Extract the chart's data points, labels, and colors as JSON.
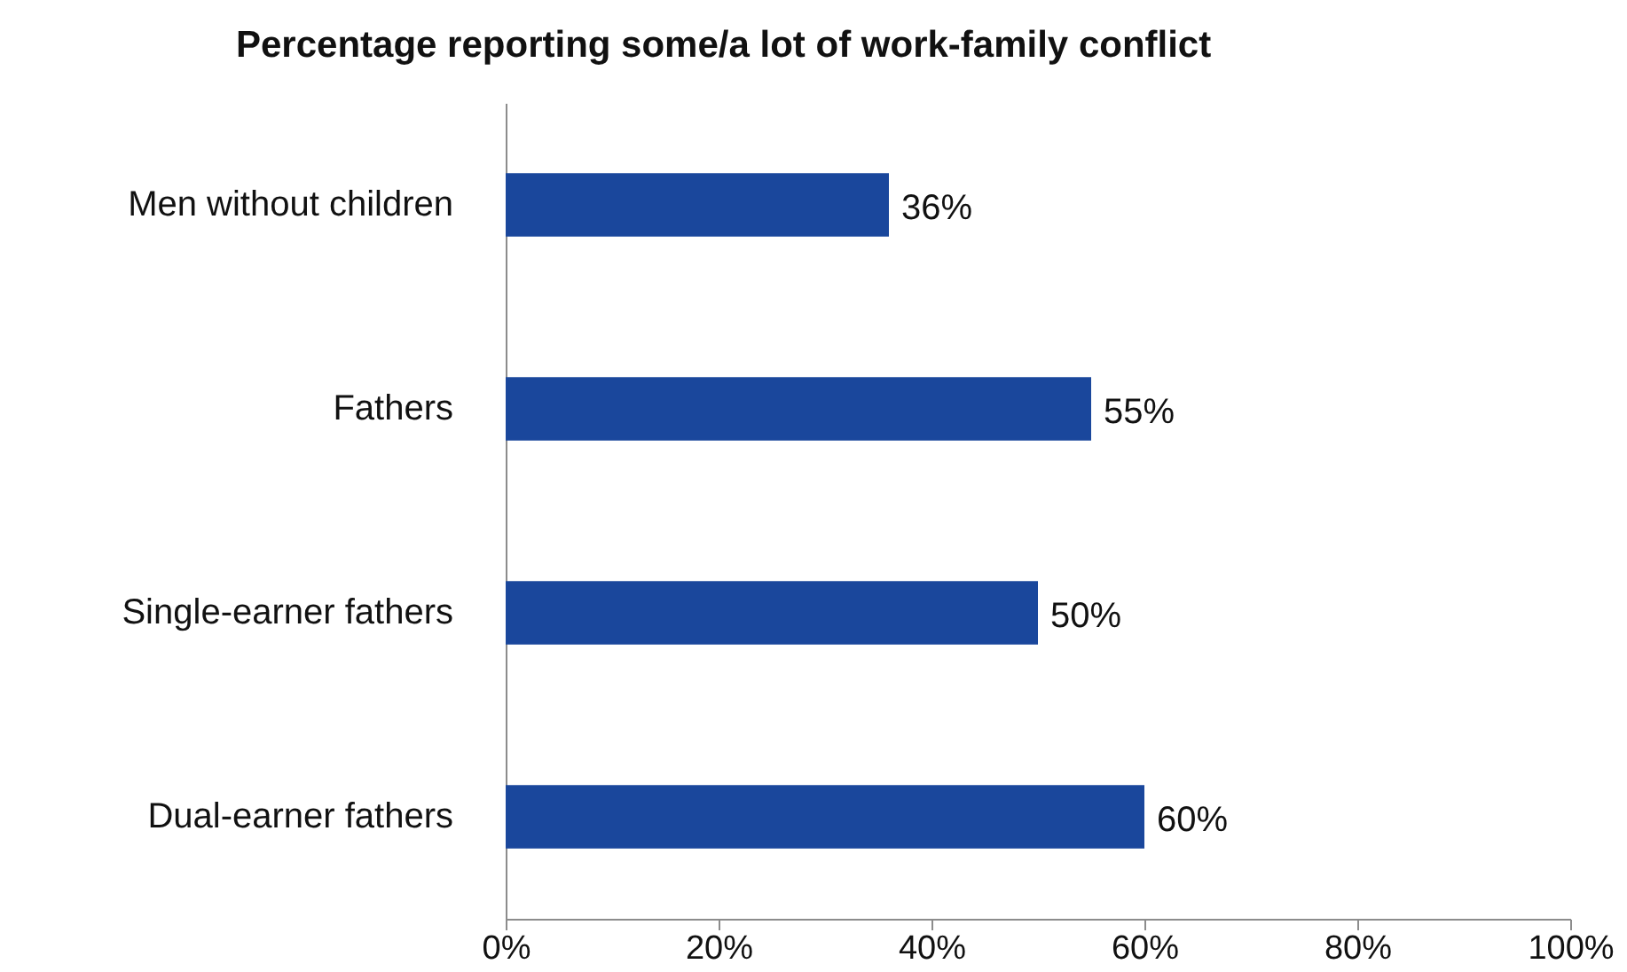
{
  "chart_data": {
    "type": "bar",
    "orientation": "horizontal",
    "title": "Percentage reporting some/a lot of work-family conflict",
    "categories": [
      "Men without children",
      "Fathers",
      "Single-earner fathers",
      "Dual-earner fathers"
    ],
    "values": [
      36,
      55,
      50,
      60
    ],
    "color": "#1a479c",
    "value_labels": [
      "36%",
      "55%",
      "50%",
      "60%"
    ],
    "xlim": [
      0,
      100
    ],
    "xticks": [
      {
        "value": 0,
        "label": "0%"
      },
      {
        "value": 20,
        "label": "20%"
      },
      {
        "value": 40,
        "label": "40%"
      },
      {
        "value": 60,
        "label": "60%"
      },
      {
        "value": 80,
        "label": "80%"
      },
      {
        "value": 100,
        "label": "100%"
      }
    ],
    "grid": false
  }
}
